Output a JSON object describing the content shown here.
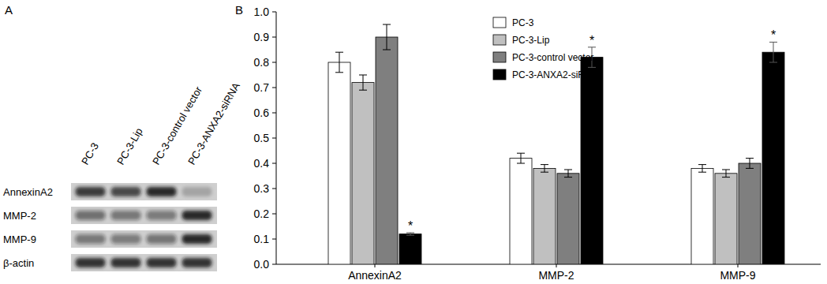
{
  "blot": {
    "panel_label": "A",
    "lanes": [
      "PC-3",
      "PC-3-Lip",
      "PC-3-control vector",
      "PC-3-ANXA2-siRNA"
    ],
    "rows": [
      "AnnexinA2",
      "MMP-2",
      "MMP-9",
      "β-actin"
    ]
  },
  "chart_data": {
    "type": "bar",
    "panel_label": "B",
    "categories": [
      "AnnexinA2",
      "MMP-2",
      "MMP-9"
    ],
    "series": [
      {
        "name": "PC-3",
        "color": "#ffffff",
        "values": [
          0.8,
          0.42,
          0.38
        ],
        "errors": [
          0.04,
          0.02,
          0.015
        ]
      },
      {
        "name": "PC-3-Lip",
        "color": "#c0c0c0",
        "values": [
          0.72,
          0.38,
          0.36
        ],
        "errors": [
          0.03,
          0.015,
          0.015
        ]
      },
      {
        "name": "PC-3-control vector",
        "color": "#7f7f7f",
        "values": [
          0.9,
          0.36,
          0.4
        ],
        "errors": [
          0.05,
          0.015,
          0.02
        ]
      },
      {
        "name": "PC-3-ANXA2-siRNA",
        "color": "#000000",
        "values": [
          0.12,
          0.82,
          0.84
        ],
        "errors": [
          0.005,
          0.04,
          0.04
        ],
        "significance": [
          "*",
          "*",
          "*"
        ]
      }
    ],
    "ylim": [
      0,
      1
    ],
    "yticks": [
      {
        "value": 0,
        "label": "0.0"
      },
      0.1,
      0.2,
      0.3,
      0.4,
      0.5,
      0.6,
      0.7,
      0.8,
      0.9,
      {
        "value": 1,
        "label": "1.0"
      }
    ],
    "grid": false,
    "legend": "upper center"
  }
}
